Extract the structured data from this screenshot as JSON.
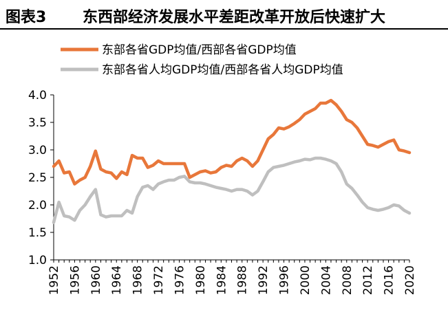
{
  "figure": {
    "label": "图表3",
    "title": "东西部经济发展水平差距改革开放后快速扩大"
  },
  "chart_data": {
    "type": "line",
    "title": "东西部经济发展水平差距改革开放后快速扩大",
    "xlabel": "",
    "ylabel": "",
    "ylim": [
      1.0,
      4.0
    ],
    "xlim": [
      1952,
      2020
    ],
    "y_ticks": [
      "1.0",
      "1.5",
      "2.0",
      "2.5",
      "3.0",
      "3.5",
      "4.0"
    ],
    "x_ticks": [
      "1952",
      "1956",
      "1960",
      "1964",
      "1968",
      "1972",
      "1976",
      "1980",
      "1984",
      "1988",
      "1992",
      "1996",
      "2000",
      "2004",
      "2008",
      "2012",
      "2016",
      "2020"
    ],
    "grid": false,
    "legend_position": "top-left",
    "series": [
      {
        "name": "东部各省GDP均值/西部各省GDP均值",
        "color": "#E8773A",
        "x": [
          1952,
          1953,
          1954,
          1955,
          1956,
          1957,
          1958,
          1959,
          1960,
          1961,
          1962,
          1963,
          1964,
          1965,
          1966,
          1967,
          1968,
          1969,
          1970,
          1971,
          1972,
          1973,
          1974,
          1975,
          1976,
          1977,
          1978,
          1979,
          1980,
          1981,
          1982,
          1983,
          1984,
          1985,
          1986,
          1987,
          1988,
          1989,
          1990,
          1991,
          1992,
          1993,
          1994,
          1995,
          1996,
          1997,
          1998,
          1999,
          2000,
          2001,
          2002,
          2003,
          2004,
          2005,
          2006,
          2007,
          2008,
          2009,
          2010,
          2011,
          2012,
          2013,
          2014,
          2015,
          2016,
          2017,
          2018,
          2019,
          2020
        ],
        "values": [
          2.7,
          2.8,
          2.58,
          2.6,
          2.38,
          2.45,
          2.5,
          2.7,
          2.98,
          2.65,
          2.6,
          2.58,
          2.48,
          2.6,
          2.55,
          2.9,
          2.85,
          2.85,
          2.68,
          2.72,
          2.8,
          2.75,
          2.75,
          2.75,
          2.75,
          2.75,
          2.5,
          2.55,
          2.6,
          2.62,
          2.58,
          2.6,
          2.68,
          2.72,
          2.7,
          2.8,
          2.85,
          2.8,
          2.7,
          2.8,
          3.0,
          3.2,
          3.28,
          3.4,
          3.38,
          3.42,
          3.48,
          3.55,
          3.65,
          3.7,
          3.75,
          3.85,
          3.85,
          3.9,
          3.82,
          3.7,
          3.55,
          3.5,
          3.4,
          3.25,
          3.1,
          3.08,
          3.05,
          3.1,
          3.15,
          3.18,
          3.0,
          2.98,
          2.95
        ]
      },
      {
        "name": "东部各省人均GDP均值/西部各省人均GDP均值",
        "color": "#BFBFBF",
        "x": [
          1952,
          1953,
          1954,
          1955,
          1956,
          1957,
          1958,
          1959,
          1960,
          1961,
          1962,
          1963,
          1964,
          1965,
          1966,
          1967,
          1968,
          1969,
          1970,
          1971,
          1972,
          1973,
          1974,
          1975,
          1976,
          1977,
          1978,
          1979,
          1980,
          1981,
          1982,
          1983,
          1984,
          1985,
          1986,
          1987,
          1988,
          1989,
          1990,
          1991,
          1992,
          1993,
          1994,
          1995,
          1996,
          1997,
          1998,
          1999,
          2000,
          2001,
          2002,
          2003,
          2004,
          2005,
          2006,
          2007,
          2008,
          2009,
          2010,
          2011,
          2012,
          2013,
          2014,
          2015,
          2016,
          2017,
          2018,
          2019,
          2020
        ],
        "values": [
          1.68,
          2.05,
          1.8,
          1.78,
          1.72,
          1.9,
          2.0,
          2.15,
          2.28,
          1.82,
          1.78,
          1.8,
          1.8,
          1.8,
          1.9,
          1.85,
          2.15,
          2.32,
          2.35,
          2.28,
          2.38,
          2.42,
          2.45,
          2.45,
          2.5,
          2.52,
          2.42,
          2.4,
          2.4,
          2.38,
          2.35,
          2.32,
          2.3,
          2.28,
          2.25,
          2.28,
          2.28,
          2.25,
          2.18,
          2.25,
          2.42,
          2.6,
          2.68,
          2.7,
          2.72,
          2.75,
          2.78,
          2.8,
          2.83,
          2.82,
          2.85,
          2.85,
          2.83,
          2.8,
          2.75,
          2.6,
          2.38,
          2.3,
          2.18,
          2.05,
          1.95,
          1.92,
          1.9,
          1.92,
          1.95,
          2.0,
          1.98,
          1.9,
          1.85
        ]
      }
    ]
  }
}
